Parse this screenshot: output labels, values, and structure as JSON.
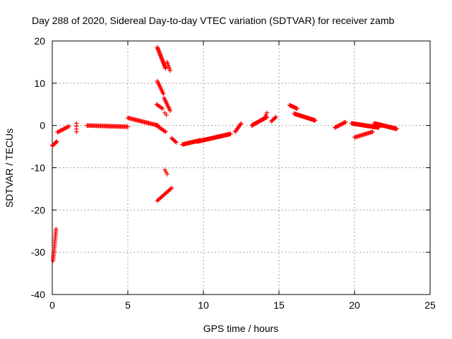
{
  "chart_data": {
    "type": "scatter",
    "title": "Day 288 of 2020, Sidereal Day-to-day VTEC variation (SDTVAR) for receiver zamb",
    "xlabel": "GPS time / hours",
    "ylabel": "SDTVAR / TECUs",
    "xlim": [
      0,
      25
    ],
    "ylim": [
      -40,
      20
    ],
    "xticks": [
      0,
      5,
      10,
      15,
      20,
      25
    ],
    "yticks": [
      -40,
      -30,
      -20,
      -10,
      0,
      10,
      20
    ],
    "xtick_labels": [
      "0",
      "5",
      "10",
      "15",
      "20",
      "25"
    ],
    "ytick_labels": [
      "-40",
      "-30",
      "-20",
      "-10",
      "0",
      "10",
      "20"
    ],
    "grid": true,
    "marker": "+",
    "series_color": "#ff0000",
    "segments": [
      {
        "x0": 0.0,
        "x1": 0.3,
        "y0": -4.8,
        "y1": -3.8,
        "n": 8
      },
      {
        "x0": 0.35,
        "x1": 1.1,
        "y0": -1.6,
        "y1": -0.2,
        "n": 12
      },
      {
        "x0": 1.6,
        "x1": 1.6,
        "y0": -1.5,
        "y1": 0.5,
        "n": 4
      },
      {
        "x0": 0.05,
        "x1": 0.25,
        "y0": -32.0,
        "y1": -24.5,
        "n": 20
      },
      {
        "x0": 2.3,
        "x1": 5.0,
        "y0": 0.0,
        "y1": -0.3,
        "n": 40
      },
      {
        "x0": 5.0,
        "x1": 7.0,
        "y0": 1.8,
        "y1": 0.0,
        "n": 30
      },
      {
        "x0": 6.9,
        "x1": 7.5,
        "y0": 0.0,
        "y1": -1.5,
        "n": 10
      },
      {
        "x0": 6.95,
        "x1": 7.5,
        "y0": 18.5,
        "y1": 13.5,
        "n": 22
      },
      {
        "x0": 7.6,
        "x1": 7.8,
        "y0": 15.0,
        "y1": 13.0,
        "n": 6
      },
      {
        "x0": 6.95,
        "x1": 7.35,
        "y0": 10.5,
        "y1": 7.5,
        "n": 10
      },
      {
        "x0": 7.4,
        "x1": 7.8,
        "y0": 6.5,
        "y1": 3.5,
        "n": 10
      },
      {
        "x0": 6.9,
        "x1": 7.3,
        "y0": 5.0,
        "y1": 4.0,
        "n": 6
      },
      {
        "x0": 7.45,
        "x1": 7.55,
        "y0": 3.0,
        "y1": 2.5,
        "n": 2
      },
      {
        "x0": 7.45,
        "x1": 7.6,
        "y0": -10.5,
        "y1": -11.5,
        "n": 3
      },
      {
        "x0": 6.95,
        "x1": 7.9,
        "y0": -17.8,
        "y1": -14.8,
        "n": 14
      },
      {
        "x0": 7.9,
        "x1": 8.2,
        "y0": -3.0,
        "y1": -4.0,
        "n": 6
      },
      {
        "x0": 8.6,
        "x1": 9.8,
        "y0": -4.5,
        "y1": -3.5,
        "n": 24
      },
      {
        "x0": 9.6,
        "x1": 11.8,
        "y0": -3.8,
        "y1": -2.0,
        "n": 60
      },
      {
        "x0": 12.1,
        "x1": 12.5,
        "y0": -1.5,
        "y1": 0.5,
        "n": 8
      },
      {
        "x0": 13.2,
        "x1": 14.2,
        "y0": 0.0,
        "y1": 2.0,
        "n": 24
      },
      {
        "x0": 14.0,
        "x1": 14.2,
        "y0": 1.5,
        "y1": 3.0,
        "n": 4
      },
      {
        "x0": 14.5,
        "x1": 14.8,
        "y0": 1.0,
        "y1": 2.0,
        "n": 6
      },
      {
        "x0": 15.7,
        "x1": 16.2,
        "y0": 4.8,
        "y1": 4.0,
        "n": 10
      },
      {
        "x0": 16.0,
        "x1": 17.4,
        "y0": 2.8,
        "y1": 1.2,
        "n": 30
      },
      {
        "x0": 18.7,
        "x1": 19.4,
        "y0": -0.5,
        "y1": 0.8,
        "n": 12
      },
      {
        "x0": 19.8,
        "x1": 21.6,
        "y0": 0.5,
        "y1": -0.5,
        "n": 44
      },
      {
        "x0": 20.0,
        "x1": 21.2,
        "y0": -2.8,
        "y1": -1.5,
        "n": 18
      },
      {
        "x0": 21.3,
        "x1": 22.8,
        "y0": 0.5,
        "y1": -0.8,
        "n": 40
      }
    ]
  }
}
